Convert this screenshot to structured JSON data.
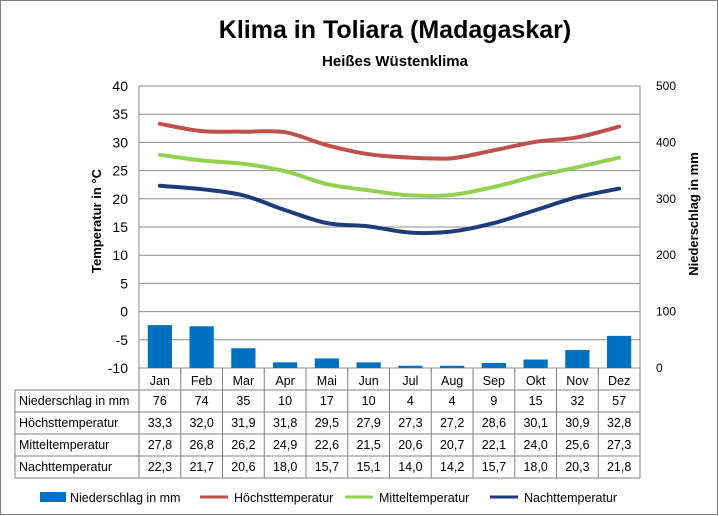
{
  "chart_data": {
    "type": "bar+line",
    "title": "Klima in Toliara (Madagaskar)",
    "subtitle": "Heißes Wüstenklima",
    "categories": [
      "Jan",
      "Feb",
      "Mar",
      "Apr",
      "Mai",
      "Jun",
      "Jul",
      "Aug",
      "Sep",
      "Okt",
      "Nov",
      "Dez"
    ],
    "ylabel_left": "Temperatur in °C",
    "ylabel_right": "Niederschlag in mm",
    "ylim_left": [
      -10,
      40
    ],
    "yticks_left": [
      "40",
      "35",
      "30",
      "25",
      "20",
      "15",
      "10",
      "5",
      "0",
      "-5",
      "-10"
    ],
    "ylim_right": [
      0,
      500
    ],
    "yticks_right": [
      "500",
      "400",
      "300",
      "200",
      "100",
      "0"
    ],
    "grid": true,
    "legend_position": "bottom",
    "bar_series": {
      "name": "Niederschlag in mm",
      "color": "#0070c0",
      "values": [
        76,
        74,
        35,
        10,
        17,
        10,
        4,
        4,
        9,
        15,
        32,
        57
      ]
    },
    "line_series": [
      {
        "name": "Höchsttemperatur",
        "color": "#c0504d",
        "values": [
          33.3,
          32.0,
          31.9,
          31.8,
          29.5,
          27.9,
          27.3,
          27.2,
          28.6,
          30.1,
          30.9,
          32.8
        ]
      },
      {
        "name": "Mitteltemperatur",
        "color": "#92d050",
        "values": [
          27.8,
          26.8,
          26.2,
          24.9,
          22.6,
          21.5,
          20.6,
          20.7,
          22.1,
          24.0,
          25.6,
          27.3
        ]
      },
      {
        "name": "Nachttemperatur",
        "color": "#1f3c7a",
        "values": [
          22.3,
          21.7,
          20.6,
          18.0,
          15.7,
          15.1,
          14.0,
          14.2,
          15.7,
          18.0,
          20.3,
          21.8
        ]
      }
    ],
    "table": {
      "rows": [
        {
          "label": "Niederschlag in mm",
          "cells": [
            "76",
            "74",
            "35",
            "10",
            "17",
            "10",
            "4",
            "4",
            "9",
            "15",
            "32",
            "57"
          ]
        },
        {
          "label": "Höchsttemperatur",
          "cells": [
            "33,3",
            "32,0",
            "31,9",
            "31,8",
            "29,5",
            "27,9",
            "27,3",
            "27,2",
            "28,6",
            "30,1",
            "30,9",
            "32,8"
          ]
        },
        {
          "label": "Mitteltemperatur",
          "cells": [
            "27,8",
            "26,8",
            "26,2",
            "24,9",
            "22,6",
            "21,5",
            "20,6",
            "20,7",
            "22,1",
            "24,0",
            "25,6",
            "27,3"
          ]
        },
        {
          "label": "Nachttemperatur",
          "cells": [
            "22,3",
            "21,7",
            "20,6",
            "18,0",
            "15,7",
            "15,1",
            "14,0",
            "14,2",
            "15,7",
            "18,0",
            "20,3",
            "21,8"
          ]
        }
      ]
    }
  }
}
